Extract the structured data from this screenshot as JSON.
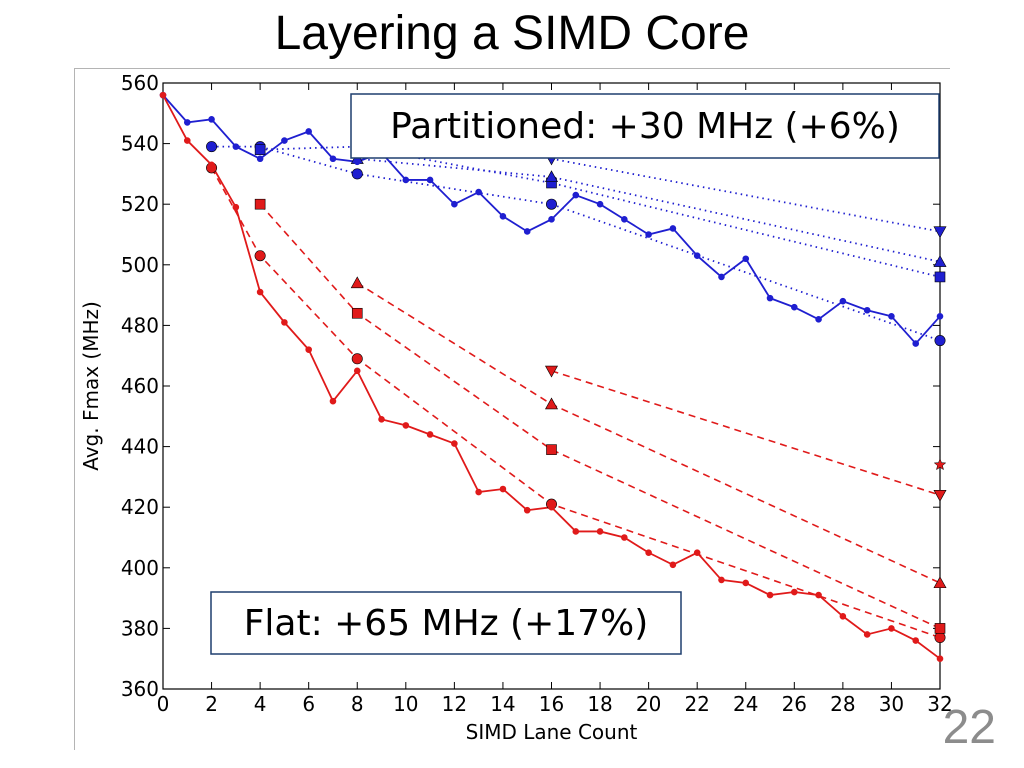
{
  "slide": {
    "title": "Layering a SIMD Core",
    "page_number": "22"
  },
  "chart_data": {
    "type": "line",
    "title": "",
    "xlabel": "SIMD Lane Count",
    "ylabel": "Avg. Fmax (MHz)",
    "xlim": [
      0,
      32
    ],
    "ylim": [
      360,
      560
    ],
    "xticks": [
      0,
      2,
      4,
      6,
      8,
      10,
      12,
      14,
      16,
      18,
      20,
      22,
      24,
      26,
      28,
      30,
      32
    ],
    "yticks": [
      360,
      380,
      400,
      420,
      440,
      460,
      480,
      500,
      520,
      540,
      560
    ],
    "grid": false,
    "colors": {
      "partitioned": "#1f1fd0",
      "flat": "#e01a1a"
    },
    "annotations": [
      {
        "text": "Partitioned: +30 MHz (+6%)",
        "series": "partitioned"
      },
      {
        "text": "Flat: +65 MHz (+17%)",
        "series": "flat"
      }
    ],
    "series": [
      {
        "group": "partitioned",
        "style": "solid",
        "marker": "small-circle",
        "x": [
          0,
          1,
          2,
          3,
          4,
          5,
          6,
          7,
          8,
          9,
          10,
          11,
          12,
          13,
          14,
          15,
          16,
          17,
          18,
          19,
          20,
          21,
          22,
          23,
          24,
          25,
          26,
          27,
          28,
          29,
          30,
          31,
          32
        ],
        "values": [
          556,
          547,
          548,
          539,
          535,
          541,
          544,
          535,
          534,
          537,
          528,
          528,
          520,
          524,
          516,
          511,
          515,
          523,
          520,
          515,
          510,
          512,
          503,
          496,
          502,
          489,
          486,
          482,
          488,
          485,
          483,
          474,
          483
        ]
      },
      {
        "group": "flat",
        "style": "solid",
        "marker": "small-circle",
        "x": [
          0,
          1,
          2,
          3,
          4,
          5,
          6,
          7,
          8,
          9,
          10,
          11,
          12,
          13,
          14,
          15,
          16,
          17,
          18,
          19,
          20,
          21,
          22,
          23,
          24,
          25,
          26,
          27,
          28,
          29,
          30,
          31,
          32
        ],
        "values": [
          556,
          541,
          533,
          519,
          491,
          481,
          472,
          455,
          465,
          449,
          447,
          444,
          441,
          425,
          426,
          419,
          420,
          412,
          412,
          410,
          405,
          401,
          405,
          396,
          395,
          391,
          392,
          391,
          384,
          378,
          380,
          376,
          370
        ]
      },
      {
        "group": "partitioned",
        "style": "dotted",
        "marker": "circle",
        "x": [
          2,
          4,
          8,
          16,
          32
        ],
        "values": [
          539,
          539,
          530,
          520,
          475
        ]
      },
      {
        "group": "partitioned",
        "style": "dotted",
        "marker": "square",
        "x": [
          4,
          8,
          16,
          32
        ],
        "values": [
          538,
          539,
          527,
          496
        ]
      },
      {
        "group": "partitioned",
        "style": "dotted",
        "marker": "triangle-up",
        "x": [
          8,
          16,
          32
        ],
        "values": [
          535,
          529,
          501
        ]
      },
      {
        "group": "partitioned",
        "style": "dotted",
        "marker": "triangle-down",
        "x": [
          16,
          32
        ],
        "values": [
          535,
          511
        ]
      },
      {
        "group": "flat",
        "style": "dashed",
        "marker": "circle",
        "x": [
          2,
          4,
          8,
          16,
          32
        ],
        "values": [
          532,
          503,
          469,
          421,
          377
        ]
      },
      {
        "group": "flat",
        "style": "dashed",
        "marker": "square",
        "x": [
          4,
          8,
          16,
          32
        ],
        "values": [
          520,
          484,
          439,
          380
        ]
      },
      {
        "group": "flat",
        "style": "dashed",
        "marker": "triangle-up",
        "x": [
          8,
          16,
          32
        ],
        "values": [
          494,
          454,
          395
        ]
      },
      {
        "group": "flat",
        "style": "dashed",
        "marker": "triangle-down",
        "x": [
          16,
          32
        ],
        "values": [
          465,
          424
        ]
      },
      {
        "group": "flat",
        "style": "none",
        "marker": "star",
        "x": [
          32
        ],
        "values": [
          434
        ]
      }
    ]
  }
}
